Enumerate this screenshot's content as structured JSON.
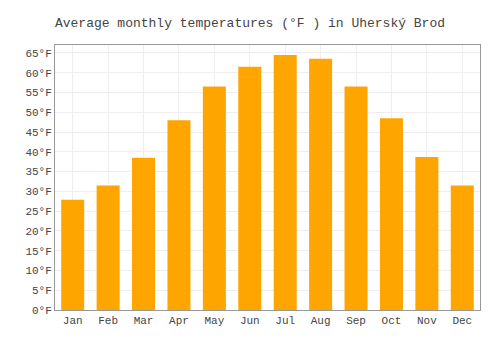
{
  "chart_data": {
    "type": "bar",
    "title": "Average monthly temperatures (°F ) in Uherský Brod",
    "categories": [
      "Jan",
      "Feb",
      "Mar",
      "Apr",
      "May",
      "Jun",
      "Jul",
      "Aug",
      "Sep",
      "Oct",
      "Nov",
      "Dec"
    ],
    "values": [
      27.9,
      31.5,
      38.5,
      48.0,
      56.5,
      61.5,
      64.5,
      63.5,
      56.5,
      48.5,
      38.7,
      31.5
    ],
    "color": "#FFA500",
    "ylim": [
      0,
      67
    ],
    "yticks": [
      {
        "value": 0,
        "label": "0°F"
      },
      {
        "value": 5,
        "label": "5°F"
      },
      {
        "value": 10,
        "label": "10°F"
      },
      {
        "value": 15,
        "label": "15°F"
      },
      {
        "value": 20,
        "label": "20°F"
      },
      {
        "value": 25,
        "label": "25°F"
      },
      {
        "value": 30,
        "label": "30°F"
      },
      {
        "value": 35,
        "label": "35°F"
      },
      {
        "value": 40,
        "label": "40°F"
      },
      {
        "value": 45,
        "label": "45°F"
      },
      {
        "value": 50,
        "label": "50°F"
      },
      {
        "value": 55,
        "label": "55°F"
      },
      {
        "value": 60,
        "label": "60°F"
      },
      {
        "value": 65,
        "label": "65°F"
      }
    ],
    "grid": true
  }
}
